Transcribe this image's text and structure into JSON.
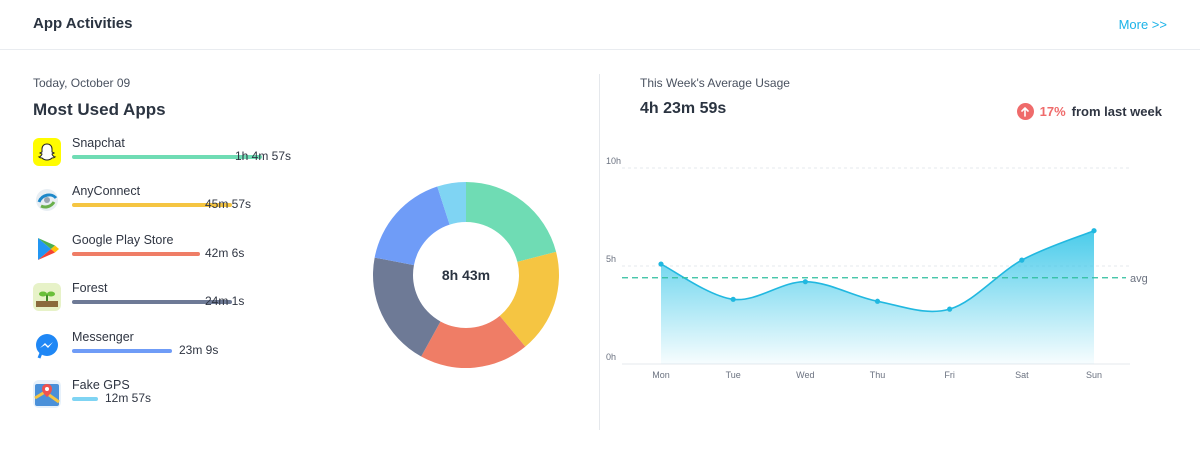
{
  "header": {
    "title": "App Activities",
    "more_label": "More >>"
  },
  "left": {
    "date": "Today, October 09",
    "heading": "Most Used Apps",
    "apps": [
      {
        "name": "Snapchat",
        "time": "1h 4m 57s",
        "minutes": 64.95,
        "color": "#6fdcb4",
        "icon": "snapchat-icon"
      },
      {
        "name": "AnyConnect",
        "time": "45m 57s",
        "minutes": 45.95,
        "color": "#f5c542",
        "icon": "anyconnect-icon"
      },
      {
        "name": "Google Play Store",
        "time": "42m 6s",
        "minutes": 42.1,
        "color": "#ef7d66",
        "icon": "google-play-icon"
      },
      {
        "name": "Forest",
        "time": "24m 1s",
        "minutes": 24.02,
        "color": "#6e7a96",
        "icon": "forest-icon"
      },
      {
        "name": "Messenger",
        "time": "23m 9s",
        "minutes": 23.15,
        "color": "#6f9cf7",
        "icon": "messenger-icon"
      },
      {
        "name": "Fake GPS",
        "time": "12m 57s",
        "minutes": 12.95,
        "color": "#7fd4f3",
        "icon": "fake-gps-icon"
      }
    ],
    "donut_total": "8h 43m"
  },
  "right": {
    "label": "This Week's Average Usage",
    "value": "4h 23m 59s",
    "change_pct": "17%",
    "change_text": "from last week",
    "change_color": "#ef6b6b"
  },
  "chart_data": {
    "type": "area",
    "categories": [
      "Mon",
      "Tue",
      "Wed",
      "Thu",
      "Fri",
      "Sat",
      "Sun"
    ],
    "values": [
      5.1,
      3.3,
      4.2,
      3.2,
      2.8,
      5.3,
      6.8
    ],
    "average": 4.4,
    "average_label": "avg",
    "y_ticks": [
      "0h",
      "5h",
      "10h"
    ],
    "ylim": [
      0,
      10
    ],
    "grid": true,
    "line_color": "#21b8e0"
  },
  "donut_data": {
    "type": "pie",
    "slices": [
      {
        "label": "Snapchat",
        "value": 21,
        "color": "#6fdcb4"
      },
      {
        "label": "AnyConnect",
        "value": 18,
        "color": "#f5c542"
      },
      {
        "label": "Google Play Store",
        "value": 19,
        "color": "#ef7d66"
      },
      {
        "label": "Forest",
        "value": 20,
        "color": "#6e7a96"
      },
      {
        "label": "Messenger",
        "value": 17,
        "color": "#6f9cf7"
      },
      {
        "label": "Fake GPS",
        "value": 5,
        "color": "#7fd4f3"
      }
    ]
  }
}
